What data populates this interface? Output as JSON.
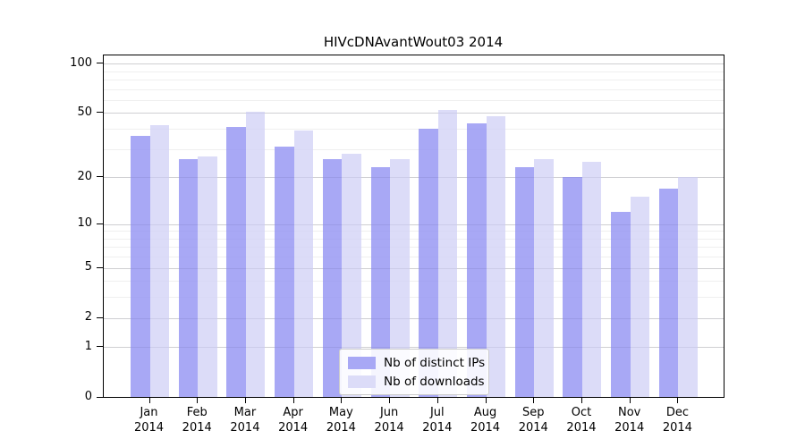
{
  "chart": {
    "title": "HIVcDNAvantWout03 2014",
    "year": "2014",
    "legend": {
      "position": "lower center",
      "items": [
        "Nb of distinct IPs",
        "Nb of downloads"
      ]
    }
  },
  "chart_data": {
    "type": "bar",
    "title": "HIVcDNAvantWout03 2014",
    "xlabel": "",
    "ylabel": "",
    "yscale": "log(1+y)",
    "ylim": [
      0,
      112
    ],
    "grid": true,
    "legend_position": "lower center",
    "categories": [
      "Jan 2014",
      "Feb 2014",
      "Mar 2014",
      "Apr 2014",
      "May 2014",
      "Jun 2014",
      "Jul 2014",
      "Aug 2014",
      "Sep 2014",
      "Oct 2014",
      "Nov 2014",
      "Dec 2014"
    ],
    "month_labels": [
      "Jan",
      "Feb",
      "Mar",
      "Apr",
      "May",
      "Jun",
      "Jul",
      "Aug",
      "Sep",
      "Oct",
      "Nov",
      "Dec"
    ],
    "series": [
      {
        "name": "Nb of distinct IPs",
        "color": "#a8a8f5",
        "values": [
          36,
          26,
          41,
          31,
          26,
          23,
          40,
          43,
          23,
          20,
          12,
          17
        ]
      },
      {
        "name": "Nb of downloads",
        "color": "#dcdcf8",
        "values": [
          42,
          27,
          51,
          39,
          28,
          26,
          52,
          48,
          26,
          25,
          15,
          20
        ]
      }
    ],
    "yticks": [
      0,
      1,
      2,
      5,
      10,
      20,
      50,
      100
    ],
    "minor_gridlines": [
      3,
      4,
      6,
      7,
      8,
      9,
      30,
      40,
      60,
      70,
      80,
      90
    ]
  }
}
